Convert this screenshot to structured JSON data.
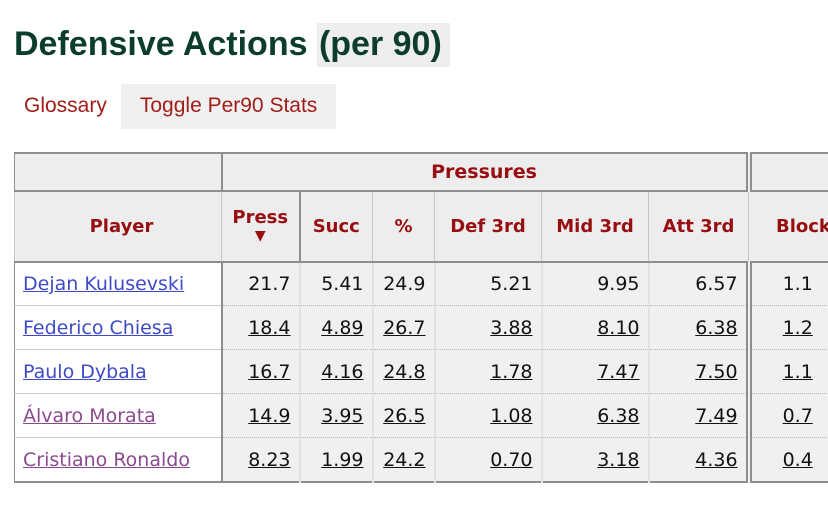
{
  "title": {
    "main": "Defensive Actions ",
    "highlight": "(per 90)"
  },
  "toolbar": {
    "glossary_label": "Glossary",
    "toggle_label": "Toggle Per90 Stats"
  },
  "table": {
    "group_headers": {
      "pressures": "Pressures",
      "blocks": ""
    },
    "columns": {
      "player": "Player",
      "press": "Press",
      "succ": "Succ",
      "pct": "%",
      "def_3rd": "Def 3rd",
      "mid_3rd": "Mid 3rd",
      "att_3rd": "Att 3rd",
      "blocks": "Blocks"
    },
    "sort": {
      "column": "Press",
      "direction": "descending",
      "indicator": "▼"
    },
    "rows": [
      {
        "player": "Dejan Kulusevski",
        "press": "21.7",
        "succ": "5.41",
        "pct": "24.9",
        "def_3rd": "5.21",
        "mid_3rd": "9.95",
        "att_3rd": "6.57",
        "blocks": "1.1"
      },
      {
        "player": "Federico Chiesa",
        "press": "18.4",
        "succ": "4.89",
        "pct": "26.7",
        "def_3rd": "3.88",
        "mid_3rd": "8.10",
        "att_3rd": "6.38",
        "blocks": "1.2"
      },
      {
        "player": "Paulo Dybala",
        "press": "16.7",
        "succ": "4.16",
        "pct": "24.8",
        "def_3rd": "1.78",
        "mid_3rd": "7.47",
        "att_3rd": "7.50",
        "blocks": "1.1"
      },
      {
        "player": "Álvaro Morata",
        "press": "14.9",
        "succ": "3.95",
        "pct": "26.5",
        "def_3rd": "1.08",
        "mid_3rd": "6.38",
        "att_3rd": "7.49",
        "blocks": "0.7"
      },
      {
        "player": "Cristiano Ronaldo",
        "press": "8.23",
        "succ": "1.99",
        "pct": "24.2",
        "def_3rd": "0.70",
        "mid_3rd": "3.18",
        "att_3rd": "4.36",
        "blocks": "0.4"
      }
    ],
    "notes": {
      "blocks_column_clipped": "true"
    }
  },
  "colors": {
    "title_green": "#0c3c2b",
    "header_red": "#970d10",
    "toolbar_red": "#a01d1a",
    "sorted_col_yellow": "#ffffc2",
    "link_blue": "#3e4bc5",
    "link_visited_purple": "#8b4a8e",
    "header_bg": "#ededed",
    "stat_cell_bg": "#f0f0f0",
    "grid_gray": "#8e8e8e",
    "title_highlight_bg": "#eeeeee"
  }
}
